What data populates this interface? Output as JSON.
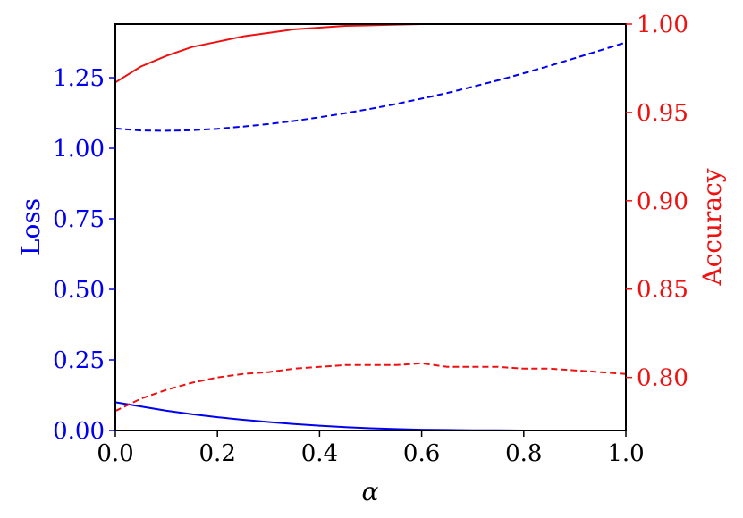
{
  "chart_data": {
    "type": "line",
    "xlabel": "α",
    "ylabel_left": "Loss",
    "ylabel_right": "Accuracy",
    "xlim": [
      0.0,
      1.0
    ],
    "ylim_left": [
      0.0,
      1.44
    ],
    "ylim_right": [
      0.77,
      1.0
    ],
    "x_ticks": [
      "0.0",
      "0.2",
      "0.4",
      "0.6",
      "0.8",
      "1.0"
    ],
    "left_ticks": [
      "0.00",
      "0.25",
      "0.50",
      "0.75",
      "1.00",
      "1.25"
    ],
    "right_ticks": [
      "0.80",
      "0.85",
      "0.90",
      "0.95",
      "1.00"
    ],
    "grid": false,
    "colors": {
      "loss": "#0000ee",
      "accuracy": "#ee1111"
    },
    "series": [
      {
        "axis": "left",
        "color": "loss",
        "style": "solid",
        "x": [
          0.0,
          0.05,
          0.1,
          0.15,
          0.2,
          0.25,
          0.3,
          0.35,
          0.4,
          0.45,
          0.5,
          0.55,
          0.6,
          0.65,
          0.7,
          0.75,
          0.8,
          0.85,
          0.9,
          0.95,
          1.0
        ],
        "values": [
          0.1,
          0.085,
          0.07,
          0.058,
          0.047,
          0.038,
          0.03,
          0.023,
          0.017,
          0.012,
          0.008,
          0.005,
          0.003,
          0.002,
          0.001,
          0.001,
          0.0,
          0.0,
          0.0,
          0.0,
          0.0
        ]
      },
      {
        "axis": "left",
        "color": "loss",
        "style": "dashed",
        "x": [
          0.0,
          0.05,
          0.1,
          0.15,
          0.2,
          0.25,
          0.3,
          0.35,
          0.4,
          0.45,
          0.5,
          0.55,
          0.6,
          0.65,
          0.7,
          0.75,
          0.8,
          0.85,
          0.9,
          0.95,
          1.0
        ],
        "values": [
          1.07,
          1.063,
          1.062,
          1.064,
          1.069,
          1.077,
          1.086,
          1.097,
          1.11,
          1.124,
          1.14,
          1.157,
          1.176,
          1.196,
          1.218,
          1.241,
          1.266,
          1.292,
          1.319,
          1.347,
          1.375
        ]
      },
      {
        "axis": "right",
        "color": "accuracy",
        "style": "solid",
        "x": [
          0.0,
          0.05,
          0.1,
          0.15,
          0.2,
          0.25,
          0.3,
          0.35,
          0.4,
          0.45,
          0.5,
          0.55,
          0.6,
          0.65,
          0.7,
          0.75,
          0.8,
          0.85,
          0.9,
          0.95,
          1.0
        ],
        "values": [
          0.967,
          0.976,
          0.982,
          0.987,
          0.99,
          0.993,
          0.995,
          0.997,
          0.998,
          0.999,
          0.9993,
          0.9997,
          1.0,
          1.0,
          1.0,
          1.0,
          1.0,
          1.0,
          1.0,
          1.0,
          1.0
        ]
      },
      {
        "axis": "right",
        "color": "accuracy",
        "style": "dashed",
        "x": [
          0.0,
          0.05,
          0.1,
          0.15,
          0.2,
          0.25,
          0.3,
          0.35,
          0.4,
          0.45,
          0.5,
          0.55,
          0.6,
          0.65,
          0.7,
          0.75,
          0.8,
          0.85,
          0.9,
          0.95,
          1.0
        ],
        "values": [
          0.781,
          0.788,
          0.793,
          0.797,
          0.8,
          0.802,
          0.803,
          0.805,
          0.806,
          0.807,
          0.807,
          0.807,
          0.808,
          0.806,
          0.806,
          0.806,
          0.805,
          0.805,
          0.804,
          0.803,
          0.802
        ]
      }
    ]
  }
}
